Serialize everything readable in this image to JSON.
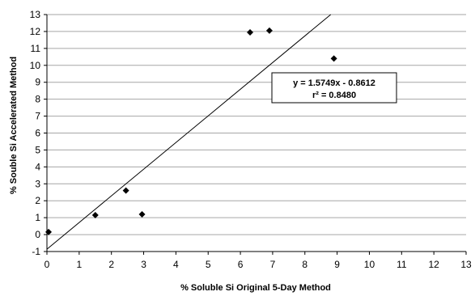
{
  "chart_data": {
    "type": "scatter",
    "xlabel": "% Soluble Si Original 5-Day Method",
    "ylabel": "% Souble Si Accelerated Method",
    "xlim": [
      0,
      13
    ],
    "ylim": [
      -1,
      13
    ],
    "xticks": [
      "0",
      "1",
      "2",
      "3",
      "4",
      "5",
      "6",
      "7",
      "8",
      "9",
      "10",
      "11",
      "12",
      "13"
    ],
    "yticks": [
      "-1",
      "0",
      "1",
      "2",
      "3",
      "4",
      "5",
      "6",
      "7",
      "8",
      "9",
      "10",
      "11",
      "12",
      "13"
    ],
    "grid": "horizontal",
    "points": [
      {
        "x": 0.05,
        "y": 0.15
      },
      {
        "x": 1.5,
        "y": 1.15
      },
      {
        "x": 2.45,
        "y": 2.6
      },
      {
        "x": 2.95,
        "y": 1.2
      },
      {
        "x": 6.3,
        "y": 11.95
      },
      {
        "x": 6.9,
        "y": 12.05
      },
      {
        "x": 8.9,
        "y": 10.4
      }
    ],
    "trendline": {
      "slope": 1.5749,
      "intercept": -0.8612
    },
    "annotation": {
      "equation": "y = 1.5749x  - 0.8612",
      "r2": "r² = 0.8480"
    },
    "colors": {
      "marker": "#000000",
      "grid": "#a6a6a6",
      "line": "#000000"
    }
  }
}
